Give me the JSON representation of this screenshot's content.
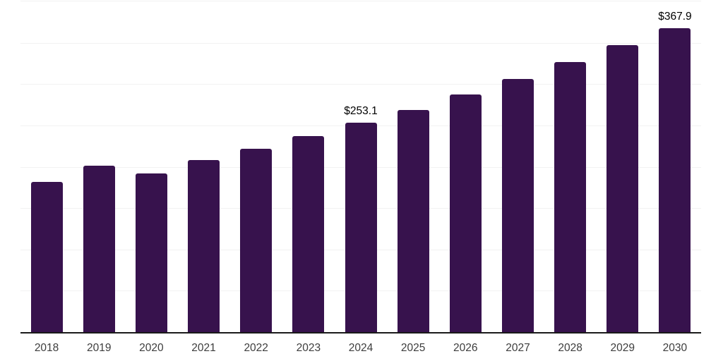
{
  "chart_data": {
    "type": "bar",
    "title": "",
    "xlabel": "",
    "ylabel": "",
    "categories": [
      "2018",
      "2019",
      "2020",
      "2021",
      "2022",
      "2023",
      "2024",
      "2025",
      "2026",
      "2027",
      "2028",
      "2029",
      "2030"
    ],
    "values": [
      182.0,
      201.5,
      192.2,
      208.3,
      222.0,
      237.3,
      253.1,
      268.8,
      287.6,
      306.3,
      326.7,
      347.2,
      367.9
    ],
    "bar_labels": [
      null,
      null,
      null,
      null,
      null,
      null,
      "$253.1",
      null,
      null,
      null,
      null,
      null,
      "$367.9"
    ],
    "value_prefix": "$",
    "ylim": [
      0,
      400
    ],
    "gridline_intervals": 8,
    "grid": "horizontal",
    "legend_position": "none",
    "y_axis_tick_labels_visible": false,
    "colors": {
      "bar": "#37124D",
      "gridline": "#F2F2F2",
      "axis_line": "#1A1A1A",
      "data_label_text": "#000000",
      "tick_label_text": "#3D3D3D",
      "background": "#FFFFFF"
    }
  }
}
